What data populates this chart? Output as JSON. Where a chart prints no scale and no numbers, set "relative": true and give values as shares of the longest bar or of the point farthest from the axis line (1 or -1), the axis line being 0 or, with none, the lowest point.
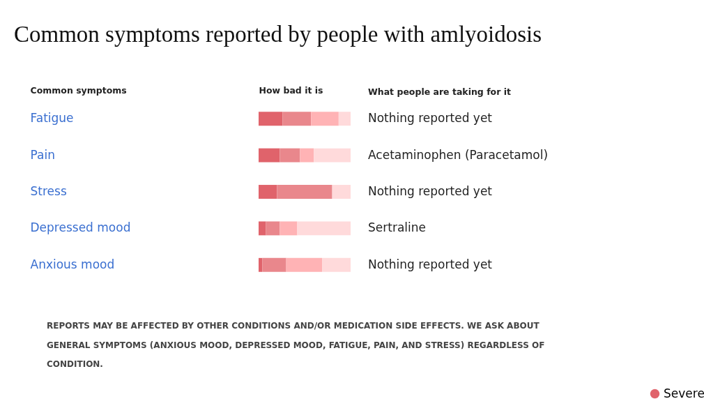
{
  "chart_data": {
    "type": "bar",
    "orientation": "horizontal",
    "stacked": true,
    "relative": true,
    "title": "Common symptoms reported by people with amlyoidosis",
    "ylabel": "Common symptoms",
    "xlabel": "How bad it is",
    "categories": [
      "Fatigue",
      "Pain",
      "Stress",
      "Depressed mood",
      "Anxious mood"
    ],
    "series": [
      {
        "name": "Severe",
        "color": "#e0636b",
        "values": [
          0.26,
          0.23,
          0.2,
          0.08,
          0.04
        ]
      },
      {
        "color": "#e9878c",
        "values": [
          0.31,
          0.22,
          0.6,
          0.15,
          0.26
        ]
      },
      {
        "color": "#ffb3b5",
        "values": [
          0.3,
          0.15,
          0,
          0.19,
          0.39
        ]
      },
      {
        "color": "#ffdadb",
        "values": [
          0.13,
          0.4,
          0.2,
          0.58,
          0.31
        ]
      }
    ],
    "annotations": [
      "What people are taking for it",
      "Nothing reported yet",
      "Acetaminophen (Paracetamol)",
      "Nothing reported yet",
      "Sertraline",
      "Nothing reported yet",
      "REPORTS MAY BE AFFECTED BY OTHER CONDITIONS AND/OR MEDICATION SIDE EFFECTS. WE ASK ABOUT GENERAL SYMPTOMS (ANXIOUS MOOD, DEPRESSED MOOD, FATIGUE, PAIN, AND STRESS) REGARDLESS OF CONDITION."
    ],
    "legend": "bottom right"
  }
}
